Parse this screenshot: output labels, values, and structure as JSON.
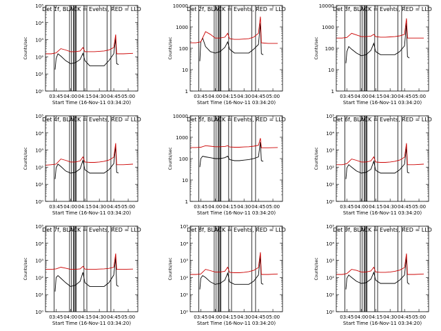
{
  "chart_data": [
    {
      "type": "line",
      "title": "Det 1f, BLACK = Events, RED = LLD",
      "xlabel": "Start Time (16-Nov-11 03:34:20)",
      "ylabel": "Counts/sec",
      "yscale": "log",
      "ylim": [
        1,
        100000
      ],
      "ytick_labels": [
        "10⁰",
        "10¹",
        "10²",
        "10³",
        "10⁴",
        "10⁵"
      ],
      "xticks": [
        "03:45",
        "04:00",
        "04:15",
        "04:30",
        "04:45",
        "05:00"
      ],
      "series": [
        {
          "color": "#000000",
          "x": [
            "03:44",
            "03:45",
            "03:47",
            "03:50",
            "03:55",
            "04:00",
            "04:05",
            "04:10",
            "04:13",
            "04:15",
            "04:20",
            "04:25",
            "04:30",
            "04:35",
            "04:40",
            "04:45",
            "04:47",
            "04:48",
            "04:50"
          ],
          "y": [
            18,
            80,
            150,
            110,
            60,
            40,
            45,
            70,
            160,
            60,
            30,
            30,
            30,
            30,
            60,
            150,
            1200,
            40,
            35
          ]
        },
        {
          "color": "#cc0000",
          "x": [
            "03:34",
            "03:40",
            "03:45",
            "03:50",
            "03:55",
            "04:00",
            "04:05",
            "04:10",
            "04:13",
            "04:15",
            "04:20",
            "04:25",
            "04:30",
            "04:35",
            "04:40",
            "04:45",
            "04:47",
            "04:48",
            "04:55",
            "05:05"
          ],
          "y": [
            150,
            150,
            170,
            300,
            250,
            200,
            200,
            220,
            350,
            200,
            200,
            200,
            210,
            220,
            250,
            350,
            2000,
            150,
            150,
            160
          ]
        }
      ]
    },
    {
      "type": "line",
      "title": "Det 2f, BLACK = Events, RED = LLD",
      "xlabel": "Start Time (16-Nov-11 03:34:20)",
      "ylabel": "Counts/sec",
      "yscale": "log",
      "ylim": [
        1,
        10000
      ],
      "ytick_labels": [
        "1",
        "10",
        "100",
        "1000",
        "10000"
      ],
      "xticks": [
        "03:45",
        "04:00",
        "04:15",
        "04:30",
        "04:45",
        "05:00"
      ],
      "series": [
        {
          "color": "#000000",
          "x": [
            "03:44",
            "03:45",
            "03:47",
            "03:50",
            "03:55",
            "04:00",
            "04:05",
            "04:10",
            "04:13",
            "04:15",
            "04:20",
            "04:25",
            "04:30",
            "04:35",
            "04:40",
            "04:45",
            "04:47",
            "04:48",
            "04:50"
          ],
          "y": [
            25,
            200,
            300,
            120,
            70,
            60,
            70,
            110,
            200,
            90,
            60,
            60,
            60,
            60,
            90,
            150,
            1500,
            55,
            50
          ]
        },
        {
          "color": "#cc0000",
          "x": [
            "03:34",
            "03:40",
            "03:45",
            "03:50",
            "03:55",
            "04:00",
            "04:05",
            "04:10",
            "04:13",
            "04:15",
            "04:20",
            "04:25",
            "04:30",
            "04:35",
            "04:40",
            "04:45",
            "04:47",
            "04:48",
            "04:55",
            "05:05"
          ],
          "y": [
            180,
            180,
            200,
            600,
            450,
            300,
            300,
            330,
            500,
            280,
            260,
            260,
            270,
            280,
            330,
            500,
            3000,
            180,
            170,
            170
          ]
        }
      ]
    },
    {
      "type": "line",
      "title": "Det 3f, BLACK = Events, RED = LLD",
      "xlabel": "Start Time (16-Nov-11 03:34:20)",
      "ylabel": "Counts/sec",
      "yscale": "log",
      "ylim": [
        1,
        10000
      ],
      "ytick_labels": [
        "1",
        "10",
        "100",
        "1000",
        "10000"
      ],
      "xticks": [
        "03:45",
        "04:00",
        "04:15",
        "04:30",
        "04:45",
        "05:00"
      ],
      "series": [
        {
          "color": "#000000",
          "x": [
            "03:44",
            "03:45",
            "03:47",
            "03:50",
            "03:55",
            "04:00",
            "04:05",
            "04:10",
            "04:13",
            "04:15",
            "04:20",
            "04:25",
            "04:30",
            "04:35",
            "04:40",
            "04:45",
            "04:47",
            "04:48",
            "04:50"
          ],
          "y": [
            20,
            70,
            120,
            90,
            60,
            45,
            50,
            80,
            170,
            70,
            50,
            50,
            50,
            50,
            70,
            130,
            1500,
            40,
            35
          ]
        },
        {
          "color": "#cc0000",
          "x": [
            "03:34",
            "03:40",
            "03:45",
            "03:50",
            "03:55",
            "04:00",
            "04:05",
            "04:10",
            "04:13",
            "04:15",
            "04:20",
            "04:25",
            "04:30",
            "04:35",
            "04:40",
            "04:45",
            "04:47",
            "04:48",
            "04:55",
            "05:05"
          ],
          "y": [
            300,
            300,
            320,
            500,
            420,
            350,
            350,
            370,
            450,
            350,
            330,
            330,
            340,
            350,
            380,
            450,
            2500,
            300,
            300,
            300
          ]
        }
      ]
    },
    {
      "type": "line",
      "title": "Det 4f, BLACK = Events, RED = LLD",
      "xlabel": "Start Time (16-Nov-11 03:34:20)",
      "ylabel": "Counts/sec",
      "yscale": "log",
      "ylim": [
        1,
        100000
      ],
      "ytick_labels": [
        "10⁰",
        "10¹",
        "10²",
        "10³",
        "10⁴",
        "10⁵"
      ],
      "xticks": [
        "03:45",
        "04:00",
        "04:15",
        "04:30",
        "04:45",
        "05:00"
      ],
      "series": [
        {
          "color": "#000000",
          "x": [
            "03:44",
            "03:45",
            "03:47",
            "03:50",
            "03:55",
            "04:00",
            "04:05",
            "04:10",
            "04:13",
            "04:15",
            "04:20",
            "04:25",
            "04:30",
            "04:35",
            "04:40",
            "04:45",
            "04:47",
            "04:48",
            "04:50"
          ],
          "y": [
            20,
            90,
            150,
            110,
            60,
            45,
            50,
            80,
            250,
            70,
            45,
            45,
            45,
            45,
            70,
            160,
            1800,
            50,
            45
          ]
        },
        {
          "color": "#cc0000",
          "x": [
            "03:34",
            "03:40",
            "03:45",
            "03:50",
            "03:55",
            "04:00",
            "04:05",
            "04:10",
            "04:13",
            "04:15",
            "04:20",
            "04:25",
            "04:30",
            "04:35",
            "04:40",
            "04:45",
            "04:47",
            "04:48",
            "04:55",
            "05:05"
          ],
          "y": [
            130,
            140,
            150,
            300,
            250,
            200,
            200,
            230,
            400,
            200,
            190,
            190,
            200,
            220,
            260,
            380,
            2500,
            140,
            140,
            150
          ]
        }
      ]
    },
    {
      "type": "line",
      "title": "Det 5f, BLACK = Events, RED = LLD",
      "xlabel": "Start Time (16-Nov-11 03:34:20)",
      "ylabel": "Counts/sec",
      "yscale": "log",
      "ylim": [
        1,
        10000
      ],
      "ytick_labels": [
        "1",
        "10",
        "100",
        "1000",
        "10000"
      ],
      "xticks": [
        "03:45",
        "04:00",
        "04:15",
        "04:30",
        "04:45",
        "05:00"
      ],
      "series": [
        {
          "color": "#000000",
          "x": [
            "03:44",
            "03:45",
            "03:47",
            "03:50",
            "03:55",
            "04:00",
            "04:05",
            "04:10",
            "04:13",
            "04:15",
            "04:20",
            "04:25",
            "04:30",
            "04:35",
            "04:40",
            "04:45",
            "04:47",
            "04:48",
            "04:50"
          ],
          "y": [
            40,
            100,
            130,
            120,
            110,
            100,
            100,
            110,
            130,
            90,
            80,
            80,
            85,
            90,
            100,
            120,
            600,
            80,
            75
          ]
        },
        {
          "color": "#cc0000",
          "x": [
            "03:34",
            "03:40",
            "03:45",
            "03:50",
            "03:55",
            "04:00",
            "04:05",
            "04:10",
            "04:13",
            "04:15",
            "04:20",
            "04:25",
            "04:30",
            "04:35",
            "04:40",
            "04:45",
            "04:47",
            "04:48",
            "04:55",
            "05:05"
          ],
          "y": [
            330,
            330,
            340,
            400,
            380,
            360,
            360,
            370,
            400,
            350,
            340,
            340,
            350,
            360,
            380,
            420,
            900,
            320,
            320,
            330
          ]
        }
      ]
    },
    {
      "type": "line",
      "title": "Det 6f, BLACK = Events, RED = LLD",
      "xlabel": "Start Time (16-Nov-11 03:34:20)",
      "ylabel": "Counts/sec",
      "yscale": "log",
      "ylim": [
        1,
        100000
      ],
      "ytick_labels": [
        "10⁰",
        "10¹",
        "10²",
        "10³",
        "10⁴",
        "10⁵"
      ],
      "xticks": [
        "03:45",
        "04:00",
        "04:15",
        "04:30",
        "04:45",
        "05:00"
      ],
      "series": [
        {
          "color": "#000000",
          "x": [
            "03:44",
            "03:45",
            "03:47",
            "03:50",
            "03:55",
            "04:00",
            "04:05",
            "04:10",
            "04:13",
            "04:15",
            "04:20",
            "04:25",
            "04:30",
            "04:35",
            "04:40",
            "04:45",
            "04:47",
            "04:48",
            "04:50"
          ],
          "y": [
            20,
            90,
            140,
            100,
            60,
            45,
            50,
            75,
            220,
            65,
            45,
            45,
            45,
            45,
            70,
            150,
            1500,
            50,
            45
          ]
        },
        {
          "color": "#cc0000",
          "x": [
            "03:34",
            "03:40",
            "03:45",
            "03:50",
            "03:55",
            "04:00",
            "04:05",
            "04:10",
            "04:13",
            "04:15",
            "04:20",
            "04:25",
            "04:30",
            "04:35",
            "04:40",
            "04:45",
            "04:47",
            "04:48",
            "04:55",
            "05:05"
          ],
          "y": [
            140,
            140,
            160,
            300,
            250,
            200,
            200,
            230,
            400,
            200,
            190,
            190,
            200,
            220,
            260,
            380,
            2500,
            140,
            140,
            150
          ]
        }
      ]
    },
    {
      "type": "line",
      "title": "Det 7f, BLACK = Events, RED = LLD",
      "xlabel": "Start Time (16-Nov-11 03:34:20)",
      "ylabel": "Counts/sec",
      "yscale": "log",
      "ylim": [
        1,
        100000
      ],
      "ytick_labels": [
        "10⁰",
        "10¹",
        "10²",
        "10³",
        "10⁴",
        "10⁵"
      ],
      "xticks": [
        "03:45",
        "04:00",
        "04:15",
        "04:30",
        "04:45",
        "05:00"
      ],
      "series": [
        {
          "color": "#000000",
          "x": [
            "03:44",
            "03:45",
            "03:47",
            "03:50",
            "03:55",
            "04:00",
            "04:05",
            "04:10",
            "04:13",
            "04:15",
            "04:20",
            "04:25",
            "04:30",
            "04:35",
            "04:40",
            "04:45",
            "04:47",
            "04:48",
            "04:50"
          ],
          "y": [
            15,
            100,
            130,
            90,
            50,
            30,
            35,
            60,
            200,
            50,
            30,
            30,
            30,
            30,
            50,
            140,
            1500,
            35,
            30
          ]
        },
        {
          "color": "#cc0000",
          "x": [
            "03:34",
            "03:40",
            "03:45",
            "03:50",
            "03:55",
            "04:00",
            "04:05",
            "04:10",
            "04:13",
            "04:15",
            "04:20",
            "04:25",
            "04:30",
            "04:35",
            "04:40",
            "04:45",
            "04:47",
            "04:48",
            "04:55",
            "05:05"
          ],
          "y": [
            300,
            300,
            320,
            400,
            350,
            300,
            300,
            320,
            450,
            310,
            300,
            300,
            310,
            320,
            340,
            400,
            2500,
            300,
            300,
            310
          ]
        }
      ]
    },
    {
      "type": "line",
      "title": "Det 8f, BLACK = Events, RED = LLD",
      "xlabel": "Start Time (16-Nov-11 03:34:20)",
      "ylabel": "Counts/sec",
      "yscale": "log",
      "ylim": [
        1,
        100000
      ],
      "ytick_labels": [
        "10⁰",
        "10¹",
        "10²",
        "10³",
        "10⁴",
        "10⁵"
      ],
      "xticks": [
        "03:45",
        "04:00",
        "04:15",
        "04:30",
        "04:45",
        "05:00"
      ],
      "series": [
        {
          "color": "#000000",
          "x": [
            "03:44",
            "03:45",
            "03:47",
            "03:50",
            "03:55",
            "04:00",
            "04:05",
            "04:10",
            "04:13",
            "04:15",
            "04:20",
            "04:25",
            "04:30",
            "04:35",
            "04:40",
            "04:45",
            "04:47",
            "04:48",
            "04:50"
          ],
          "y": [
            20,
            90,
            130,
            100,
            55,
            40,
            45,
            70,
            180,
            55,
            40,
            40,
            40,
            40,
            60,
            140,
            1800,
            45,
            40
          ]
        },
        {
          "color": "#cc0000",
          "x": [
            "03:34",
            "03:40",
            "03:45",
            "03:50",
            "03:55",
            "04:00",
            "04:05",
            "04:10",
            "04:13",
            "04:15",
            "04:20",
            "04:25",
            "04:30",
            "04:35",
            "04:40",
            "04:45",
            "04:47",
            "04:48",
            "04:55",
            "05:05"
          ],
          "y": [
            150,
            150,
            160,
            300,
            250,
            210,
            210,
            230,
            400,
            200,
            190,
            190,
            200,
            220,
            260,
            380,
            3000,
            150,
            150,
            160
          ]
        }
      ]
    },
    {
      "type": "line",
      "title": "Det 9f, BLACK = Events, RED = LLD",
      "xlabel": "Start Time (16-Nov-11 03:34:20)",
      "ylabel": "Counts/sec",
      "yscale": "log",
      "ylim": [
        1,
        100000
      ],
      "ytick_labels": [
        "10⁰",
        "10¹",
        "10²",
        "10³",
        "10⁴",
        "10⁵"
      ],
      "xticks": [
        "03:45",
        "04:00",
        "04:15",
        "04:30",
        "04:45",
        "05:00"
      ],
      "series": [
        {
          "color": "#000000",
          "x": [
            "03:44",
            "03:45",
            "03:47",
            "03:50",
            "03:55",
            "04:00",
            "04:05",
            "04:10",
            "04:13",
            "04:15",
            "04:20",
            "04:25",
            "04:30",
            "04:35",
            "04:40",
            "04:45",
            "04:47",
            "04:48",
            "04:50"
          ],
          "y": [
            20,
            90,
            140,
            100,
            60,
            45,
            50,
            80,
            200,
            70,
            45,
            45,
            45,
            45,
            70,
            140,
            1500,
            50,
            40
          ]
        },
        {
          "color": "#cc0000",
          "x": [
            "03:34",
            "03:40",
            "03:45",
            "03:50",
            "03:55",
            "04:00",
            "04:05",
            "04:10",
            "04:13",
            "04:15",
            "04:20",
            "04:25",
            "04:30",
            "04:35",
            "04:40",
            "04:45",
            "04:47",
            "04:48",
            "04:55",
            "05:05"
          ],
          "y": [
            150,
            150,
            170,
            300,
            260,
            210,
            210,
            240,
            400,
            210,
            200,
            200,
            210,
            230,
            270,
            380,
            2500,
            150,
            150,
            160
          ]
        }
      ]
    }
  ],
  "vlines": [
    "03:43",
    "03:59",
    "04:01",
    "04:03",
    "04:04",
    "04:05",
    "04:06",
    "04:14",
    "04:17",
    "04:38",
    "04:42"
  ]
}
